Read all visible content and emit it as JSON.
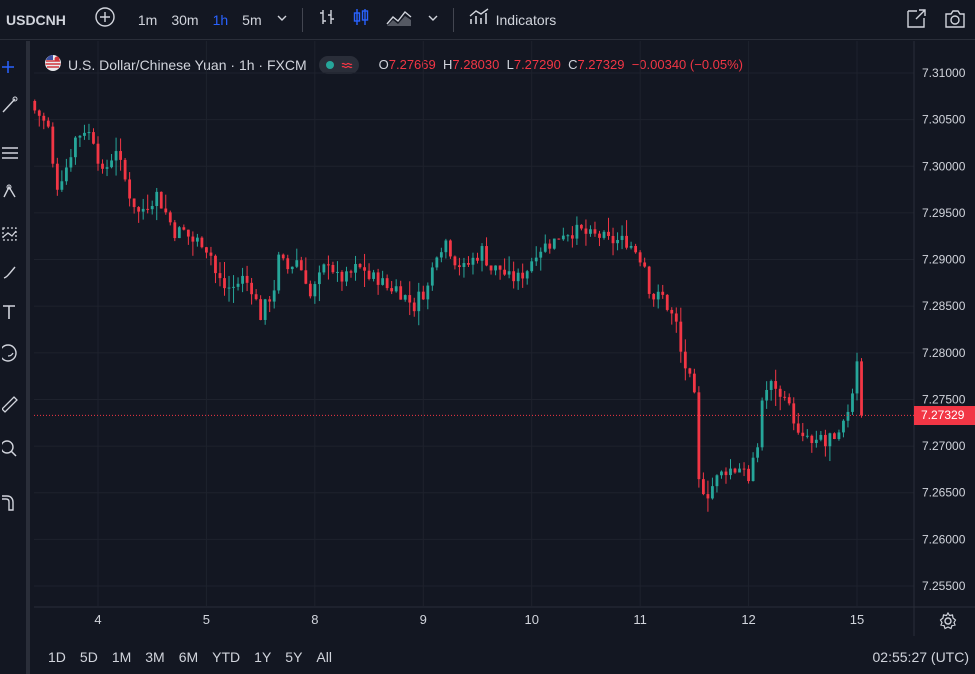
{
  "toolbar": {
    "symbol": "USDCNH",
    "intervals": [
      "1m",
      "30m",
      "1h",
      "5m"
    ],
    "active_interval": "1h",
    "indicators_label": "Indicators"
  },
  "legend": {
    "title": "U.S. Dollar/Chinese Yuan · 1h · FXCM",
    "o_label": "O",
    "o_value": "7.27669",
    "h_label": "H",
    "h_value": "7.28030",
    "l_label": "L",
    "l_value": "7.27290",
    "c_label": "C",
    "c_value": "7.27329",
    "change": "−0.00340 (−0.05%)"
  },
  "price_tag": "7.27329",
  "bottom": {
    "ranges": [
      "1D",
      "5D",
      "1M",
      "3M",
      "6M",
      "YTD",
      "1Y",
      "5Y",
      "All"
    ],
    "time": "02:55:27 (UTC)"
  },
  "colors": {
    "up": "#26a69a",
    "down": "#f23645",
    "background": "#131722",
    "grid": "#1e222d",
    "accent": "#2962ff"
  },
  "chart_data": {
    "type": "candlestick",
    "ylim": [
      7.2525,
      7.3125
    ],
    "y_ticks": [
      "7.31000",
      "7.30500",
      "7.30000",
      "7.29500",
      "7.29000",
      "7.28500",
      "7.28000",
      "7.27500",
      "7.27000",
      "7.26500",
      "7.26000",
      "7.25500"
    ],
    "y_tick_values": [
      7.31,
      7.305,
      7.3,
      7.295,
      7.29,
      7.285,
      7.28,
      7.275,
      7.27,
      7.265,
      7.26,
      7.255
    ],
    "x_ticks": [
      "4",
      "5",
      "8",
      "9",
      "10",
      "11",
      "12",
      "15"
    ],
    "x_tick_index": [
      14,
      38,
      62,
      86,
      110,
      134,
      158,
      182
    ],
    "n_bars": 184,
    "last_price": 7.27329,
    "path_anchors": [
      [
        0,
        7.3065
      ],
      [
        2,
        7.3055
      ],
      [
        4,
        7.304
      ],
      [
        5,
        7.3
      ],
      [
        6,
        7.298
      ],
      [
        8,
        7.3
      ],
      [
        10,
        7.303
      ],
      [
        12,
        7.304
      ],
      [
        14,
        7.303
      ],
      [
        16,
        7.299
      ],
      [
        18,
        7.301
      ],
      [
        19,
        7.302
      ],
      [
        20,
        7.3
      ],
      [
        22,
        7.297
      ],
      [
        24,
        7.295
      ],
      [
        26,
        7.296
      ],
      [
        28,
        7.297
      ],
      [
        30,
        7.295
      ],
      [
        32,
        7.293
      ],
      [
        34,
        7.293
      ],
      [
        36,
        7.292
      ],
      [
        38,
        7.292
      ],
      [
        40,
        7.2905
      ],
      [
        41,
        7.2885
      ],
      [
        43,
        7.287
      ],
      [
        45,
        7.287
      ],
      [
        47,
        7.288
      ],
      [
        49,
        7.287
      ],
      [
        51,
        7.284
      ],
      [
        52,
        7.285
      ],
      [
        54,
        7.287
      ],
      [
        55,
        7.29
      ],
      [
        57,
        7.289
      ],
      [
        59,
        7.29
      ],
      [
        61,
        7.288
      ],
      [
        62,
        7.286
      ],
      [
        64,
        7.288
      ],
      [
        66,
        7.29
      ],
      [
        68,
        7.288
      ],
      [
        70,
        7.288
      ],
      [
        72,
        7.289
      ],
      [
        74,
        7.289
      ],
      [
        75,
        7.288
      ],
      [
        77,
        7.288
      ],
      [
        79,
        7.287
      ],
      [
        81,
        7.287
      ],
      [
        83,
        7.286
      ],
      [
        85,
        7.285
      ],
      [
        86,
        7.286
      ],
      [
        88,
        7.287
      ],
      [
        90,
        7.291
      ],
      [
        92,
        7.292
      ],
      [
        94,
        7.29
      ],
      [
        96,
        7.289
      ],
      [
        98,
        7.29
      ],
      [
        100,
        7.291
      ],
      [
        102,
        7.289
      ],
      [
        104,
        7.289
      ],
      [
        106,
        7.288
      ],
      [
        108,
        7.288
      ],
      [
        110,
        7.289
      ],
      [
        112,
        7.291
      ],
      [
        114,
        7.2915
      ],
      [
        116,
        7.292
      ],
      [
        118,
        7.293
      ],
      [
        120,
        7.293
      ],
      [
        122,
        7.293
      ],
      [
        124,
        7.2925
      ],
      [
        126,
        7.2925
      ],
      [
        128,
        7.292
      ],
      [
        130,
        7.292
      ],
      [
        132,
        7.292
      ],
      [
        134,
        7.291
      ],
      [
        136,
        7.2895
      ],
      [
        137,
        7.287
      ],
      [
        138,
        7.286
      ],
      [
        140,
        7.286
      ],
      [
        141,
        7.285
      ],
      [
        142,
        7.284
      ],
      [
        143,
        7.283
      ],
      [
        144,
        7.28
      ],
      [
        145,
        7.2785
      ],
      [
        146,
        7.277
      ],
      [
        147,
        7.275
      ],
      [
        148,
        7.266
      ],
      [
        150,
        7.265
      ],
      [
        152,
        7.2665
      ],
      [
        154,
        7.2675
      ],
      [
        156,
        7.2675
      ],
      [
        158,
        7.268
      ],
      [
        159,
        7.266
      ],
      [
        160,
        7.268
      ],
      [
        161,
        7.27
      ],
      [
        162,
        7.275
      ],
      [
        163,
        7.276
      ],
      [
        164,
        7.2765
      ],
      [
        165,
        7.2765
      ],
      [
        166,
        7.275
      ],
      [
        167,
        7.276
      ],
      [
        168,
        7.274
      ],
      [
        169,
        7.273
      ],
      [
        170,
        7.271
      ],
      [
        171,
        7.2705
      ],
      [
        172,
        7.271
      ],
      [
        173,
        7.27
      ],
      [
        174,
        7.27
      ],
      [
        175,
        7.271
      ],
      [
        176,
        7.27
      ],
      [
        177,
        7.271
      ],
      [
        178,
        7.27
      ],
      [
        179,
        7.271
      ],
      [
        180,
        7.272
      ],
      [
        181,
        7.274
      ],
      [
        182,
        7.276
      ],
      [
        183,
        7.2795
      ],
      [
        184,
        7.2785
      ]
    ]
  }
}
